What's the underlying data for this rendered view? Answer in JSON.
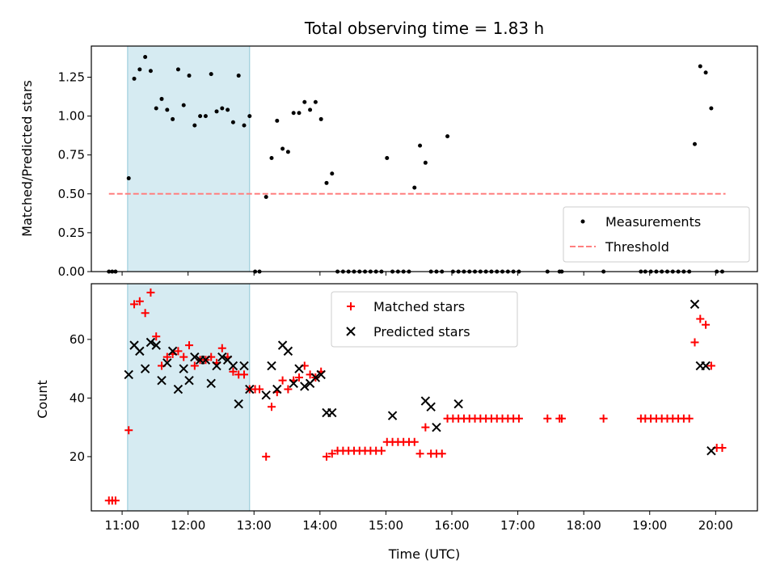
{
  "chart_data": [
    {
      "type": "scatter",
      "title": "Total observing time = 1.83 h",
      "xlabel": "",
      "ylabel": "Matched/Predicted stars",
      "xlim": [
        "10:32",
        "20:38"
      ],
      "ylim": [
        0,
        1.45
      ],
      "yticks": [
        "0.00",
        "0.25",
        "0.50",
        "0.75",
        "1.00",
        "1.25"
      ],
      "x_ticks_labels_shown": false,
      "highlight_span": {
        "start": "11:05",
        "end": "12:56",
        "color": "#add8e6"
      },
      "legend": {
        "placement": "lower right"
      },
      "series": [
        {
          "name": "Measurements",
          "marker": "dot",
          "color": "#000000",
          "x": [
            "10:48",
            "10:51",
            "10:54",
            "11:06",
            "11:11",
            "11:16",
            "11:21",
            "11:26",
            "11:31",
            "11:36",
            "11:41",
            "11:46",
            "11:51",
            "11:56",
            "12:01",
            "12:06",
            "12:11",
            "12:16",
            "12:21",
            "12:26",
            "12:31",
            "12:36",
            "12:41",
            "12:46",
            "12:51",
            "12:56",
            "13:01",
            "13:05",
            "13:11",
            "13:16",
            "13:21",
            "13:26",
            "13:31",
            "13:36",
            "13:41",
            "13:46",
            "13:51",
            "13:56",
            "14:01",
            "14:06",
            "14:11",
            "14:16",
            "14:21",
            "14:26",
            "14:31",
            "14:36",
            "14:41",
            "14:46",
            "14:51",
            "14:56",
            "15:01",
            "15:06",
            "15:11",
            "15:16",
            "15:21",
            "15:26",
            "15:31",
            "15:36",
            "15:41",
            "15:46",
            "15:51",
            "15:56",
            "16:01",
            "16:06",
            "16:11",
            "16:16",
            "16:21",
            "16:26",
            "16:31",
            "16:36",
            "16:41",
            "16:46",
            "16:51",
            "16:56",
            "17:01",
            "17:27",
            "17:38",
            "17:40",
            "18:18",
            "18:52",
            "18:56",
            "19:01",
            "19:06",
            "19:11",
            "19:16",
            "19:21",
            "19:26",
            "19:31",
            "19:36",
            "19:41",
            "19:46",
            "19:51",
            "19:56",
            "20:01",
            "20:06"
          ],
          "y": [
            0.0,
            0.0,
            0.0,
            0.6,
            1.24,
            1.3,
            1.38,
            1.29,
            1.05,
            1.11,
            1.04,
            0.98,
            1.3,
            1.07,
            1.26,
            0.94,
            1.0,
            1.0,
            1.27,
            1.03,
            1.05,
            1.04,
            0.96,
            1.26,
            0.94,
            1.0,
            0.0,
            0.0,
            0.48,
            0.73,
            0.97,
            0.79,
            0.77,
            1.02,
            1.02,
            1.09,
            1.04,
            1.09,
            0.98,
            0.57,
            0.63,
            0.0,
            0.0,
            0.0,
            0.0,
            0.0,
            0.0,
            0.0,
            0.0,
            0.0,
            0.73,
            0.0,
            0.0,
            0.0,
            0.0,
            0.54,
            0.81,
            0.7,
            0.0,
            0.0,
            0.0,
            0.87,
            0.0,
            0.0,
            0.0,
            0.0,
            0.0,
            0.0,
            0.0,
            0.0,
            0.0,
            0.0,
            0.0,
            0.0,
            0.0,
            0.0,
            0.0,
            0.0,
            0.0,
            0.0,
            0.0,
            0.0,
            0.0,
            0.0,
            0.0,
            0.0,
            0.0,
            0.0,
            0.0,
            0.82,
            1.32,
            1.28,
            1.05,
            0.0,
            0.0
          ]
        },
        {
          "name": "Threshold",
          "line_style": "dashed",
          "color": "#ff7f7f",
          "x": [
            "10:48",
            "20:09"
          ],
          "y": [
            0.5,
            0.5
          ]
        }
      ]
    },
    {
      "type": "scatter",
      "title": "",
      "xlabel": "Time (UTC)",
      "ylabel": "Count",
      "xlim": [
        "10:32",
        "20:38"
      ],
      "ylim": [
        1.5,
        79
      ],
      "yticks": [
        "20",
        "40",
        "60"
      ],
      "xticks": [
        "11:00",
        "12:00",
        "13:00",
        "14:00",
        "15:00",
        "16:00",
        "17:00",
        "18:00",
        "19:00",
        "20:00"
      ],
      "highlight_span": {
        "start": "11:05",
        "end": "12:56",
        "color": "#add8e6"
      },
      "legend": {
        "placement": "upper center"
      },
      "series": [
        {
          "name": "Matched stars",
          "marker": "plus",
          "color": "#ff0000",
          "x": [
            "10:48",
            "10:51",
            "10:54",
            "11:06",
            "11:11",
            "11:16",
            "11:21",
            "11:26",
            "11:31",
            "11:36",
            "11:41",
            "11:46",
            "11:51",
            "11:56",
            "12:01",
            "12:06",
            "12:11",
            "12:16",
            "12:21",
            "12:26",
            "12:31",
            "12:36",
            "12:41",
            "12:46",
            "12:51",
            "12:56",
            "13:01",
            "13:05",
            "13:11",
            "13:16",
            "13:21",
            "13:26",
            "13:31",
            "13:36",
            "13:41",
            "13:46",
            "13:51",
            "13:56",
            "14:01",
            "14:06",
            "14:11",
            "14:16",
            "14:21",
            "14:26",
            "14:31",
            "14:36",
            "14:41",
            "14:46",
            "14:51",
            "14:56",
            "15:01",
            "15:06",
            "15:11",
            "15:16",
            "15:21",
            "15:26",
            "15:31",
            "15:36",
            "15:41",
            "15:46",
            "15:51",
            "15:56",
            "16:01",
            "16:06",
            "16:11",
            "16:16",
            "16:21",
            "16:26",
            "16:31",
            "16:36",
            "16:41",
            "16:46",
            "16:51",
            "16:56",
            "17:01",
            "17:27",
            "17:38",
            "17:40",
            "18:18",
            "18:52",
            "18:56",
            "19:01",
            "19:06",
            "19:11",
            "19:16",
            "19:21",
            "19:26",
            "19:31",
            "19:36",
            "19:41",
            "19:46",
            "19:51",
            "19:56",
            "20:01",
            "20:06"
          ],
          "y": [
            5,
            5,
            5,
            29,
            72,
            73,
            69,
            76,
            61,
            51,
            54,
            55,
            56,
            54,
            58,
            51,
            53,
            53,
            54,
            52,
            57,
            54,
            49,
            48,
            48,
            43,
            43,
            43,
            20,
            37,
            42,
            46,
            43,
            46,
            47,
            51,
            48,
            47,
            49,
            20,
            21,
            22,
            22,
            22,
            22,
            22,
            22,
            22,
            22,
            22,
            25,
            25,
            25,
            25,
            25,
            25,
            21,
            30,
            21,
            21,
            21,
            33,
            33,
            33,
            33,
            33,
            33,
            33,
            33,
            33,
            33,
            33,
            33,
            33,
            33,
            33,
            33,
            33,
            33,
            33,
            33,
            33,
            33,
            33,
            33,
            33,
            33,
            33,
            33,
            59,
            67,
            65,
            51,
            23,
            23
          ]
        },
        {
          "name": "Predicted stars",
          "marker": "x",
          "color": "#000000",
          "x": [
            "11:06",
            "11:11",
            "11:16",
            "11:21",
            "11:26",
            "11:31",
            "11:36",
            "11:41",
            "11:46",
            "11:51",
            "11:56",
            "12:01",
            "12:06",
            "12:11",
            "12:16",
            "12:21",
            "12:26",
            "12:31",
            "12:36",
            "12:41",
            "12:46",
            "12:51",
            "12:56",
            "13:11",
            "13:16",
            "13:21",
            "13:26",
            "13:31",
            "13:36",
            "13:41",
            "13:46",
            "13:51",
            "13:56",
            "14:01",
            "14:06",
            "14:11",
            "15:06",
            "15:36",
            "15:41",
            "15:46",
            "16:06",
            "19:41",
            "19:46",
            "19:51",
            "19:56"
          ],
          "y": [
            48,
            58,
            56,
            50,
            59,
            58,
            46,
            52,
            56,
            43,
            50,
            46,
            54,
            53,
            53,
            45,
            51,
            54,
            53,
            51,
            38,
            51,
            43,
            41,
            51,
            43,
            58,
            56,
            45,
            50,
            44,
            45,
            47,
            48,
            35,
            35,
            34,
            39,
            37,
            30,
            38,
            72,
            51,
            51,
            22
          ]
        }
      ]
    }
  ]
}
